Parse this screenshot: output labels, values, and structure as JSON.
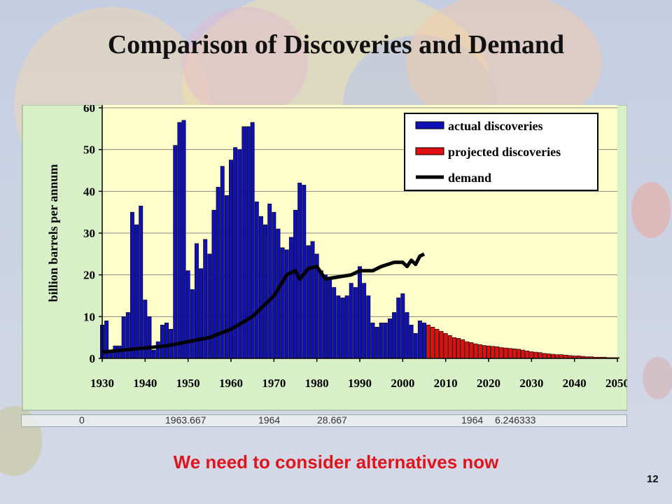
{
  "slide": {
    "title": "Comparison of Discoveries and Demand",
    "footer": "We need to consider alternatives now",
    "page_number": "12",
    "strip_values": [
      "0",
      "1963.667",
      "1964",
      "28.667",
      "1964",
      "6.246333"
    ]
  },
  "colors": {
    "actual": "#1010b8",
    "projected": "#e01010",
    "demand": "#000000",
    "plot_bg": "#ffffcc",
    "panel_bg": "#d8f0c8"
  },
  "chart_data": {
    "type": "bar",
    "ylabel": "billion barrels per annum",
    "xlabel": "",
    "ylim": [
      0,
      60
    ],
    "yticks": [
      0,
      10,
      20,
      30,
      40,
      50,
      60
    ],
    "xlim": [
      1930,
      2050
    ],
    "xticks": [
      1930,
      1940,
      1950,
      1960,
      1970,
      1980,
      1990,
      2000,
      2010,
      2020,
      2030,
      2040,
      2050
    ],
    "legend_position": "top-right",
    "legend": [
      "actual discoveries",
      "projected discoveries",
      "demand"
    ],
    "grid": true,
    "series": [
      {
        "name": "actual discoveries",
        "x": [
          1930,
          1931,
          1932,
          1933,
          1934,
          1935,
          1936,
          1937,
          1938,
          1939,
          1940,
          1941,
          1942,
          1943,
          1944,
          1945,
          1946,
          1947,
          1948,
          1949,
          1950,
          1951,
          1952,
          1953,
          1954,
          1955,
          1956,
          1957,
          1958,
          1959,
          1960,
          1961,
          1962,
          1963,
          1964,
          1965,
          1966,
          1967,
          1968,
          1969,
          1970,
          1971,
          1972,
          1973,
          1974,
          1975,
          1976,
          1977,
          1978,
          1979,
          1980,
          1981,
          1982,
          1983,
          1984,
          1985,
          1986,
          1987,
          1988,
          1989,
          1990,
          1991,
          1992,
          1993,
          1994,
          1995,
          1996,
          1997,
          1998,
          1999,
          2000,
          2001,
          2002,
          2003,
          2004,
          2005
        ],
        "values": [
          8,
          9,
          2,
          3,
          3,
          10,
          11,
          35,
          32,
          36.5,
          14,
          10,
          2,
          4,
          8,
          8.5,
          7,
          51,
          56.5,
          57,
          21,
          16.5,
          27.5,
          21.5,
          28.5,
          25,
          35.5,
          41,
          46,
          39,
          47.5,
          50.5,
          50,
          55.5,
          55.5,
          56.5,
          37.5,
          34,
          32,
          37,
          35,
          31,
          26.5,
          26,
          29,
          35.5,
          42,
          41.5,
          27,
          28,
          25,
          21,
          20,
          19,
          17,
          15,
          14.5,
          15,
          18,
          17,
          22,
          18,
          15,
          8.5,
          7.5,
          8.5,
          8.5,
          9.5,
          11,
          14.5,
          15.5,
          11,
          8,
          6,
          9,
          8.5
        ]
      },
      {
        "name": "projected discoveries",
        "x": [
          2006,
          2007,
          2008,
          2009,
          2010,
          2011,
          2012,
          2013,
          2014,
          2015,
          2016,
          2017,
          2018,
          2019,
          2020,
          2021,
          2022,
          2023,
          2024,
          2025,
          2026,
          2027,
          2028,
          2029,
          2030,
          2031,
          2032,
          2033,
          2034,
          2035,
          2036,
          2037,
          2038,
          2039,
          2040,
          2041,
          2042,
          2043,
          2044,
          2045,
          2046,
          2047,
          2048,
          2049,
          2050
        ],
        "values": [
          8,
          7.5,
          7,
          6.5,
          6,
          5.5,
          5,
          4.8,
          4.5,
          4,
          3.8,
          3.5,
          3.3,
          3.1,
          3,
          2.9,
          2.8,
          2.6,
          2.5,
          2.4,
          2.3,
          2.2,
          2,
          1.8,
          1.6,
          1.5,
          1.4,
          1.2,
          1.1,
          1,
          0.9,
          0.9,
          0.8,
          0.7,
          0.6,
          0.6,
          0.5,
          0.4,
          0.4,
          0.3,
          0.3,
          0.3,
          0.2,
          0.2,
          0.2
        ]
      },
      {
        "name": "demand",
        "x": [
          1930,
          1935,
          1940,
          1945,
          1950,
          1955,
          1960,
          1965,
          1970,
          1973,
          1975,
          1976,
          1978,
          1980,
          1982,
          1985,
          1988,
          1990,
          1993,
          1995,
          1998,
          2000,
          2001,
          2002,
          2003,
          2004,
          2005
        ],
        "values": [
          1.5,
          2,
          2.5,
          3,
          4,
          5,
          7,
          10,
          15,
          20,
          21,
          19,
          21.5,
          22,
          19,
          19.5,
          20,
          21,
          21,
          22,
          23,
          23,
          22,
          23.5,
          22.5,
          24.5,
          25
        ]
      }
    ]
  }
}
